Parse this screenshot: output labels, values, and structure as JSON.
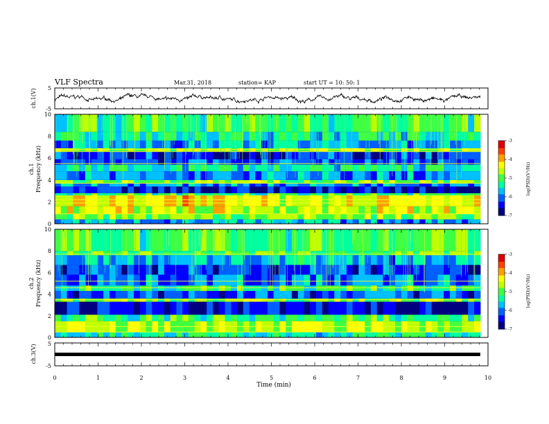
{
  "header": {
    "title": "VLF Spectra",
    "date": "Mar.31, 2018",
    "station": "station= KAP",
    "start": "start  UT =   10: 50: 1"
  },
  "chart_data": [
    {
      "type": "line",
      "name": "ch1-voltage",
      "ylabel": "ch.1(V)",
      "xlim": [
        0,
        10
      ],
      "ylim": [
        -5,
        5
      ],
      "yticks": [
        "5",
        "-5"
      ],
      "x_end": 9.82,
      "baseline": -0.2,
      "amplitude": 1.0
    },
    {
      "type": "heatmap",
      "name": "ch1-spectrogram",
      "ylabel": "Frequency (kHz)",
      "channel_label": "ch.1",
      "xlim": [
        0,
        10
      ],
      "ylim": [
        0,
        10
      ],
      "yticks": [
        "0",
        "2",
        "4",
        "6",
        "8",
        "10"
      ],
      "x_end": 9.82,
      "bands": [
        {
          "f0": 0,
          "f1": 0.4,
          "level": 0.3
        },
        {
          "f0": 0.4,
          "f1": 0.9,
          "level": 0.55
        },
        {
          "f0": 0.9,
          "f1": 1.6,
          "level": 0.62
        },
        {
          "f0": 1.6,
          "f1": 2.6,
          "level": 0.68
        },
        {
          "f0": 2.6,
          "f1": 2.8,
          "level": 0.45
        },
        {
          "f0": 2.8,
          "f1": 3.4,
          "level": 0.12
        },
        {
          "f0": 3.4,
          "f1": 3.7,
          "level": 0.28
        },
        {
          "f0": 3.7,
          "f1": 4.0,
          "level": 0.55
        },
        {
          "f0": 4.0,
          "f1": 4.8,
          "level": 0.25
        },
        {
          "f0": 4.8,
          "f1": 5.4,
          "level": 0.4
        },
        {
          "f0": 5.4,
          "f1": 5.9,
          "level": 0.22
        },
        {
          "f0": 5.9,
          "f1": 6.6,
          "level": 0.15
        },
        {
          "f0": 6.6,
          "f1": 6.9,
          "level": 0.58
        },
        {
          "f0": 6.9,
          "f1": 7.6,
          "level": 0.3
        },
        {
          "f0": 7.6,
          "f1": 8.4,
          "level": 0.4
        },
        {
          "f0": 8.4,
          "f1": 10.0,
          "level": 0.48
        }
      ],
      "lines": [
        0.9,
        1.9,
        2.2,
        3.7,
        5.5,
        6.6,
        6.8
      ]
    },
    {
      "type": "heatmap",
      "name": "ch2-spectrogram",
      "ylabel": "Frequency (kHz)",
      "channel_label": "ch.2",
      "xlim": [
        0,
        10
      ],
      "ylim": [
        0,
        10
      ],
      "yticks": [
        "0",
        "2",
        "4",
        "6",
        "8",
        "10"
      ],
      "x_end": 9.82,
      "bands": [
        {
          "f0": 0,
          "f1": 0.5,
          "level": 0.4
        },
        {
          "f0": 0.5,
          "f1": 1.5,
          "level": 0.58
        },
        {
          "f0": 1.5,
          "f1": 2.1,
          "level": 0.45
        },
        {
          "f0": 2.1,
          "f1": 3.3,
          "level": 0.12
        },
        {
          "f0": 3.3,
          "f1": 3.6,
          "level": 0.55
        },
        {
          "f0": 3.6,
          "f1": 4.3,
          "level": 0.22
        },
        {
          "f0": 4.3,
          "f1": 4.8,
          "level": 0.45
        },
        {
          "f0": 4.8,
          "f1": 5.8,
          "level": 0.25
        },
        {
          "f0": 5.8,
          "f1": 6.7,
          "level": 0.18
        },
        {
          "f0": 6.7,
          "f1": 7.6,
          "level": 0.32
        },
        {
          "f0": 7.6,
          "f1": 8.0,
          "level": 0.5
        },
        {
          "f0": 8.0,
          "f1": 10.0,
          "level": 0.48
        }
      ],
      "lines": [
        0.5,
        1.0,
        3.5,
        4.6,
        5.2,
        7.7
      ]
    },
    {
      "type": "line",
      "name": "ch3-voltage",
      "ylabel": "ch.3(V)",
      "xlim": [
        0,
        10
      ],
      "ylim": [
        -5,
        5
      ],
      "yticks": [
        "5",
        "-5"
      ],
      "x_end": 9.82,
      "baseline": 0.0,
      "amplitude": 0.0
    }
  ],
  "xaxis": {
    "label": "Time (min)",
    "ticks": [
      "0",
      "1",
      "2",
      "3",
      "4",
      "5",
      "6",
      "7",
      "8",
      "9",
      "10"
    ]
  },
  "colorbar": {
    "label": "log(PSD)(V²/Hz)",
    "ticks": [
      "-3",
      "-4",
      "-5",
      "-6",
      "-7"
    ],
    "range": [
      -7,
      -3
    ],
    "colors": [
      "#000080",
      "#0000ff",
      "#0060ff",
      "#00c0ff",
      "#00ffa0",
      "#40ff40",
      "#c0ff00",
      "#ffff00",
      "#ffa000",
      "#ff4000",
      "#e00000",
      "#ffffff"
    ]
  }
}
